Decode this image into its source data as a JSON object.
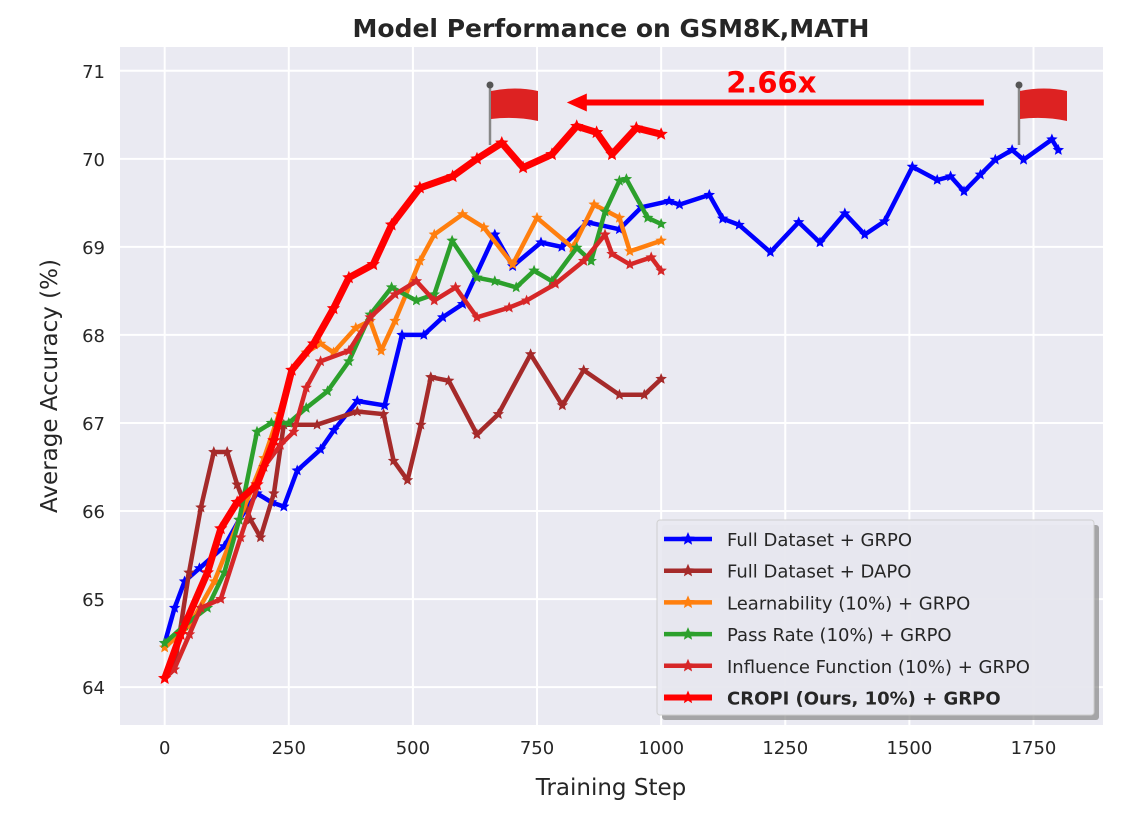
{
  "chart_data": {
    "type": "line",
    "title": "Model Performance on GSM8K,MATH",
    "xlabel": "Training Step",
    "ylabel": "Average Accuracy (%)",
    "xlim": [
      -90,
      1890
    ],
    "ylim": [
      63.57,
      71.27
    ],
    "xticks": [
      0,
      250,
      500,
      750,
      1000,
      1250,
      1500,
      1750
    ],
    "yticks": [
      64,
      65,
      66,
      67,
      68,
      69,
      70,
      71
    ],
    "grid": true,
    "background": "#eaeaf2",
    "legend_position": "lower-right",
    "series": [
      {
        "name": "Full Dataset + GRPO",
        "color": "#0000ff",
        "bold": false,
        "x": [
          0,
          20,
          40,
          70,
          120,
          150,
          186,
          215,
          240,
          267,
          314,
          341,
          388,
          443,
          478,
          522,
          560,
          600,
          665,
          701,
          758,
          800,
          851,
          916,
          960,
          1016,
          1037,
          1097,
          1124,
          1157,
          1220,
          1277,
          1320,
          1370,
          1410,
          1450,
          1506,
          1556,
          1583,
          1610,
          1643,
          1673,
          1707,
          1730,
          1787,
          1800
        ],
        "y": [
          64.5,
          64.9,
          65.2,
          65.35,
          65.6,
          65.9,
          66.2,
          66.1,
          66.05,
          66.46,
          66.7,
          66.92,
          67.25,
          67.2,
          68.0,
          68.0,
          68.2,
          68.35,
          69.14,
          68.78,
          69.05,
          69.0,
          69.28,
          69.2,
          69.45,
          69.52,
          69.48,
          69.59,
          69.32,
          69.25,
          68.94,
          69.28,
          69.05,
          69.38,
          69.14,
          69.29,
          69.91,
          69.76,
          69.8,
          69.63,
          69.82,
          69.99,
          70.1,
          69.99,
          70.22,
          70.1
        ]
      },
      {
        "name": "Full Dataset + DAPO",
        "color": "#a52a2a",
        "bold": false,
        "x": [
          0,
          19,
          49,
          73,
          99,
          126,
          146,
          173,
          193,
          220,
          240,
          307,
          388,
          441,
          461,
          489,
          516,
          536,
          572,
          629,
          672,
          737,
          801,
          844,
          916,
          966,
          1000
        ],
        "y": [
          64.1,
          64.2,
          65.3,
          66.04,
          66.67,
          66.67,
          66.3,
          65.9,
          65.7,
          66.2,
          66.98,
          66.98,
          67.13,
          67.1,
          66.57,
          66.35,
          66.98,
          67.52,
          67.48,
          66.87,
          67.1,
          67.78,
          67.2,
          67.6,
          67.32,
          67.32,
          67.5
        ]
      },
      {
        "name": "Learnability (10%) + GRPO",
        "color": "#ff7f0e",
        "bold": false,
        "x": [
          0,
          50,
          100,
          150,
          200,
          230,
          256,
          285,
          314,
          340,
          385,
          414,
          436,
          464,
          514,
          543,
          600,
          643,
          701,
          750,
          822,
          865,
          916,
          937,
          1000
        ],
        "y": [
          64.45,
          64.7,
          65.2,
          65.9,
          66.6,
          67.1,
          67.6,
          67.8,
          67.9,
          67.8,
          68.08,
          68.16,
          67.82,
          68.16,
          68.84,
          69.14,
          69.37,
          69.22,
          68.8,
          69.33,
          68.99,
          69.48,
          69.33,
          68.95,
          69.07
        ]
      },
      {
        "name": "Pass Rate (10%) + GRPO",
        "color": "#2ca02c",
        "bold": false,
        "x": [
          0,
          40,
          86,
          120,
          150,
          186,
          215,
          250,
          285,
          328,
          371,
          414,
          457,
          507,
          543,
          579,
          629,
          665,
          708,
          744,
          780,
          830,
          859,
          887,
          916,
          930,
          973,
          1000
        ],
        "y": [
          64.5,
          64.7,
          64.9,
          65.3,
          65.9,
          66.9,
          67.0,
          67.0,
          67.17,
          67.36,
          67.7,
          68.23,
          68.54,
          68.39,
          68.46,
          69.07,
          68.65,
          68.61,
          68.54,
          68.73,
          68.61,
          68.99,
          68.84,
          69.4,
          69.75,
          69.77,
          69.33,
          69.26
        ]
      },
      {
        "name": "Influence Function (10%) + GRPO",
        "color": "#d62728",
        "bold": false,
        "x": [
          0,
          19,
          50,
          73,
          113,
          153,
          200,
          233,
          260,
          285,
          314,
          371,
          414,
          464,
          507,
          543,
          586,
          629,
          694,
          729,
          787,
          844,
          887,
          901,
          937,
          980,
          1000
        ],
        "y": [
          64.1,
          64.2,
          64.6,
          64.9,
          65.0,
          65.7,
          66.5,
          66.75,
          66.9,
          67.4,
          67.7,
          67.82,
          68.2,
          68.46,
          68.61,
          68.39,
          68.54,
          68.2,
          68.31,
          68.39,
          68.58,
          68.84,
          69.14,
          68.92,
          68.8,
          68.88,
          68.73
        ]
      },
      {
        "name": "CROPI (Ours, 10%) + GRPO",
        "color": "#ff0000",
        "bold": true,
        "x": [
          0,
          32,
          86,
          113,
          146,
          186,
          220,
          256,
          300,
          340,
          371,
          420,
          457,
          514,
          580,
          629,
          679,
          722,
          780,
          830,
          870,
          901,
          950,
          1000
        ],
        "y": [
          64.1,
          64.6,
          65.3,
          65.8,
          66.1,
          66.3,
          66.8,
          67.6,
          67.9,
          68.3,
          68.65,
          68.8,
          69.25,
          69.67,
          69.8,
          70.0,
          70.18,
          69.9,
          70.05,
          70.37,
          70.3,
          70.05,
          70.35,
          70.28
        ]
      }
    ],
    "annotations": {
      "speedup_label": "2.66x",
      "speedup_color": "#ff0000",
      "arrow": {
        "from_step": 1650,
        "to_step": 810,
        "y": 70.64
      },
      "flags": [
        {
          "icon": "red-flag-icon",
          "step": 660
        },
        {
          "icon": "red-flag-icon",
          "step": 1725
        }
      ]
    }
  }
}
